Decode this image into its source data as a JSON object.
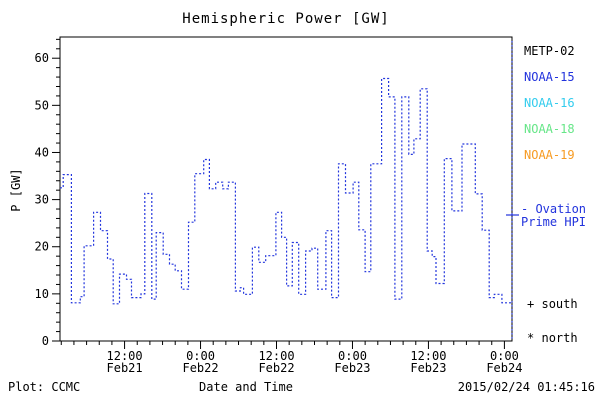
{
  "chart_data": {
    "type": "line",
    "line_style": "dotted-step",
    "title": "Hemispheric Power [GW]",
    "xlabel": "Date and Time",
    "ylabel": "P [GW]",
    "ylim": [
      0,
      64.5
    ],
    "y_major_ticks": [
      0,
      10,
      20,
      30,
      40,
      50,
      60
    ],
    "y_minor_step": 2,
    "x_hours_range": [
      1.8,
      73.2
    ],
    "x_minor_step_hours": 2,
    "x_major_ticks": [
      {
        "t": 12,
        "time": "12:00",
        "date": "Feb21"
      },
      {
        "t": 24,
        "time": "0:00",
        "date": "Feb22"
      },
      {
        "t": 36,
        "time": "12:00",
        "date": "Feb22"
      },
      {
        "t": 48,
        "time": "0:00",
        "date": "Feb23"
      },
      {
        "t": 60,
        "time": "12:00",
        "date": "Feb23"
      },
      {
        "t": 72,
        "time": "0:00",
        "date": "Feb24"
      }
    ],
    "grid": false,
    "legend_position": "right",
    "line_color": "#2336dd",
    "end_of_data_hours": 73.2,
    "series": [
      {
        "name": "Ovation Prime HPI",
        "units": "GW",
        "steps_hours_gw": [
          [
            1.8,
            32.5
          ],
          [
            2.3,
            35.3
          ],
          [
            3.6,
            8.1
          ],
          [
            5.0,
            9.4
          ],
          [
            5.6,
            20.2
          ],
          [
            7.1,
            27.3
          ],
          [
            8.2,
            23.4
          ],
          [
            9.3,
            17.4
          ],
          [
            10.2,
            7.9
          ],
          [
            11.2,
            14.2
          ],
          [
            12.3,
            13.1
          ],
          [
            13.1,
            9.2
          ],
          [
            14.6,
            10.0
          ],
          [
            15.2,
            31.3
          ],
          [
            16.3,
            8.9
          ],
          [
            17.0,
            23.0
          ],
          [
            18.1,
            18.4
          ],
          [
            19.1,
            16.3
          ],
          [
            20.0,
            14.9
          ],
          [
            21.0,
            11.0
          ],
          [
            22.1,
            25.2
          ],
          [
            23.1,
            35.5
          ],
          [
            24.5,
            38.5
          ],
          [
            25.4,
            32.3
          ],
          [
            26.4,
            33.7
          ],
          [
            27.5,
            32.3
          ],
          [
            28.4,
            33.7
          ],
          [
            29.5,
            10.6
          ],
          [
            30.3,
            11.3
          ],
          [
            30.8,
            9.9
          ],
          [
            32.2,
            19.9
          ],
          [
            33.2,
            16.7
          ],
          [
            34.3,
            18.1
          ],
          [
            35.9,
            27.3
          ],
          [
            36.8,
            22.0
          ],
          [
            37.6,
            11.7
          ],
          [
            38.5,
            20.9
          ],
          [
            39.5,
            9.9
          ],
          [
            40.6,
            19.1
          ],
          [
            41.6,
            19.7
          ],
          [
            42.5,
            11.0
          ],
          [
            43.8,
            23.4
          ],
          [
            44.7,
            9.2
          ],
          [
            45.8,
            37.6
          ],
          [
            46.9,
            31.4
          ],
          [
            48.1,
            33.7
          ],
          [
            49.0,
            23.6
          ],
          [
            50.0,
            14.7
          ],
          [
            50.9,
            37.6
          ],
          [
            52.6,
            55.7
          ],
          [
            53.7,
            51.8
          ],
          [
            54.7,
            8.9
          ],
          [
            55.8,
            51.8
          ],
          [
            56.9,
            39.6
          ],
          [
            57.7,
            42.9
          ],
          [
            58.7,
            53.5
          ],
          [
            59.8,
            19.1
          ],
          [
            60.6,
            17.9
          ],
          [
            61.2,
            12.2
          ],
          [
            62.5,
            38.7
          ],
          [
            63.7,
            27.6
          ],
          [
            65.3,
            41.8
          ],
          [
            67.4,
            31.2
          ],
          [
            68.5,
            23.5
          ],
          [
            69.6,
            9.2
          ],
          [
            70.4,
            9.9
          ],
          [
            71.6,
            8.1
          ]
        ]
      }
    ]
  },
  "legend": {
    "satellites": [
      {
        "label": "METP-02",
        "color": "#000000"
      },
      {
        "label": "NOAA-15",
        "color": "#2233dd"
      },
      {
        "label": "NOAA-16",
        "color": "#33ccee"
      },
      {
        "label": "NOAA-18",
        "color": "#66e688"
      },
      {
        "label": "NOAA-19",
        "color": "#f79b22"
      }
    ],
    "ovation": {
      "line1": "- Ovation",
      "line2": "Prime HPI",
      "color": "#2233dd"
    },
    "south_marker": {
      "symbol": "+",
      "label": "south"
    },
    "north_marker": {
      "symbol": "*",
      "label": "north"
    }
  },
  "footer": {
    "left": "Plot: CCMC",
    "right": "2015/02/24 01:45:16"
  }
}
